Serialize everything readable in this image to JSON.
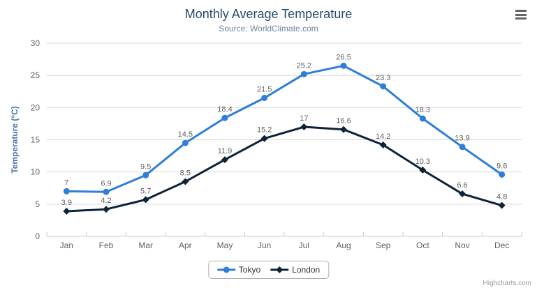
{
  "title": "Monthly Average Temperature",
  "subtitle": "Source: WorldClimate.com",
  "credits": "Highcharts.com",
  "colors": {
    "title": "#274b6d",
    "subtitle": "#6d869f",
    "axis_title": "#4572a7",
    "tick_label": "#606060",
    "data_label": "#606060",
    "grid": "#d8d8d8",
    "axis_line": "#c0d0e0",
    "legend_border": "#b0b0b0",
    "legend_text": "#333333",
    "credits_text": "#999999",
    "menu_icon": "#666666",
    "tokyo_series": "#2f7ed8",
    "london_series": "#0d233a"
  },
  "chart_data": {
    "type": "line",
    "title": "Monthly Average Temperature",
    "subtitle": "Source: WorldClimate.com",
    "categories": [
      "Jan",
      "Feb",
      "Mar",
      "Apr",
      "May",
      "Jun",
      "Jul",
      "Aug",
      "Sep",
      "Oct",
      "Nov",
      "Dec"
    ],
    "series": [
      {
        "name": "Tokyo",
        "color": "#2f7ed8",
        "marker": "circle",
        "values": [
          7,
          6.9,
          9.5,
          14.5,
          18.4,
          21.5,
          25.2,
          26.5,
          23.3,
          18.3,
          13.9,
          9.6
        ]
      },
      {
        "name": "London",
        "color": "#0d233a",
        "marker": "diamond",
        "values": [
          3.9,
          4.2,
          5.7,
          8.5,
          11.9,
          15.2,
          17,
          16.6,
          14.2,
          10.3,
          6.6,
          4.8
        ]
      }
    ],
    "xlabel": "",
    "ylabel": "Temperature (°C)",
    "ylim": [
      0,
      30
    ],
    "ytick_interval": 5,
    "yticks": [
      0,
      5,
      10,
      15,
      20,
      25,
      30
    ],
    "grid": true,
    "data_labels": true,
    "legend_position": "bottom"
  }
}
